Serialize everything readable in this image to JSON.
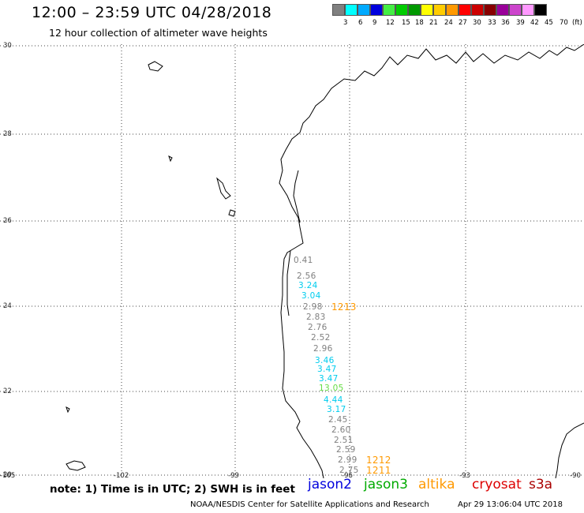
{
  "header": {
    "title": "12:00 – 23:59 UTC 04/28/2018",
    "subtitle": "12 hour collection of altimeter wave heights"
  },
  "legend": {
    "swatches": [
      {
        "color": "#808080",
        "label": "3"
      },
      {
        "color": "#00FFFF",
        "label": "6"
      },
      {
        "color": "#00AAFF",
        "label": "9"
      },
      {
        "color": "#0000DD",
        "label": "12"
      },
      {
        "color": "#44EE44",
        "label": "15"
      },
      {
        "color": "#00CC00",
        "label": "18"
      },
      {
        "color": "#009900",
        "label": "21"
      },
      {
        "color": "#FFFF00",
        "label": "24"
      },
      {
        "color": "#FFCC00",
        "label": "27"
      },
      {
        "color": "#FF9900",
        "label": "30"
      },
      {
        "color": "#FF0000",
        "label": "33"
      },
      {
        "color": "#CC0000",
        "label": "36"
      },
      {
        "color": "#880000",
        "label": "39"
      },
      {
        "color": "#990099",
        "label": "42"
      },
      {
        "color": "#CC44CC",
        "label": "45"
      },
      {
        "color": "#FF99FF",
        "label": "70"
      },
      {
        "color": "#000000",
        "label": ""
      }
    ],
    "unit": "(ft)"
  },
  "map": {
    "lat_labels": [
      "30",
      "28",
      "26",
      "24",
      "22",
      "20"
    ],
    "lon_labels": [
      "-105",
      "-102",
      "-99",
      "-96",
      "-93",
      "-90"
    ],
    "observations": [
      {
        "text": "0.41",
        "color": "#808080"
      },
      {
        "text": "2.56",
        "color": "#808080"
      },
      {
        "text": "3.24",
        "color": "#00CCEE"
      },
      {
        "text": "3.04",
        "color": "#00CCEE"
      },
      {
        "text": "2.98",
        "color": "#808080"
      },
      {
        "text": "2.83",
        "color": "#808080"
      },
      {
        "text": "2.76",
        "color": "#808080"
      },
      {
        "text": "2.52",
        "color": "#808080"
      },
      {
        "text": "2.96",
        "color": "#808080"
      },
      {
        "text": "3.46",
        "color": "#00CCEE"
      },
      {
        "text": "3.47",
        "color": "#00CCEE"
      },
      {
        "text": "3.47",
        "color": "#00CCEE"
      },
      {
        "text": "13.05",
        "color": "#66DD44"
      },
      {
        "text": "4.44",
        "color": "#00CCEE"
      },
      {
        "text": "3.17",
        "color": "#00CCEE"
      },
      {
        "text": "2.45",
        "color": "#808080"
      },
      {
        "text": "2.60",
        "color": "#808080"
      },
      {
        "text": "2.51",
        "color": "#808080"
      },
      {
        "text": "2.59",
        "color": "#808080"
      },
      {
        "text": "2.99",
        "color": "#808080"
      },
      {
        "text": "2.75",
        "color": "#808080"
      }
    ],
    "time_stamps": [
      {
        "text": "1213",
        "color": "#FF9900"
      },
      {
        "text": "1212",
        "color": "#FF9900"
      },
      {
        "text": "1211",
        "color": "#FF9900"
      }
    ]
  },
  "note": "note: 1) Time is in UTC; 2) SWH is in feet",
  "missions": [
    {
      "name": "jason2",
      "color": "#0000DD"
    },
    {
      "name": "jason3",
      "color": "#00AA00"
    },
    {
      "name": "altika",
      "color": "#FF9900"
    },
    {
      "name": "cryosat",
      "color": "#DD0000"
    },
    {
      "name": "s3a",
      "color": "#AA0000"
    }
  ],
  "footer": {
    "credit": "NOAA/NESDIS Center for Satellite Applications and Research",
    "timestamp": "Apr 29 13:06:04 UTC 2018"
  }
}
